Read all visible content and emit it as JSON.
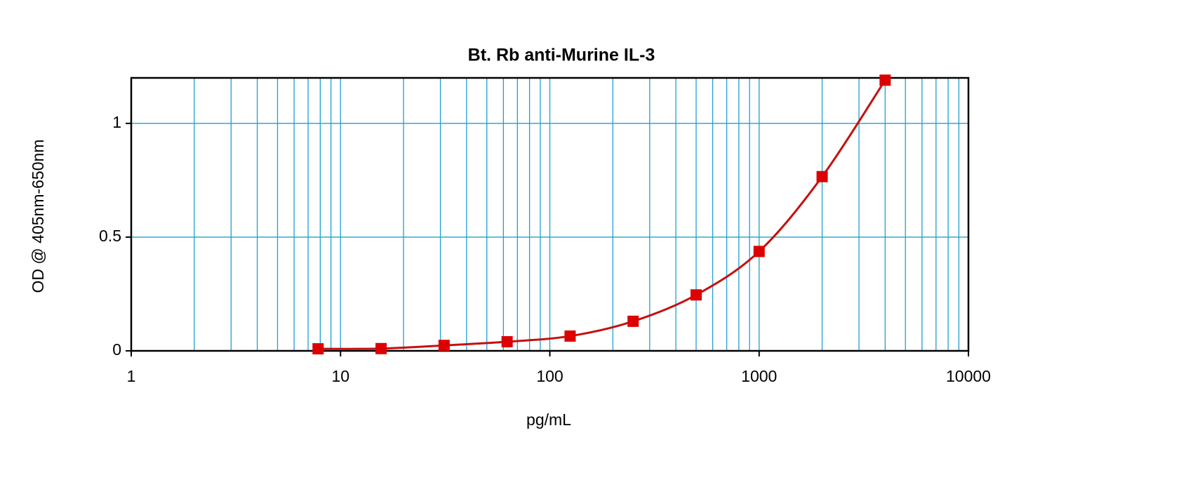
{
  "chart_data": {
    "type": "line",
    "title": "Bt. Rb anti-Murine IL-3",
    "x_label": "pg/mL",
    "y_label": "OD @ 405nm-650nm",
    "x": [
      7.8125,
      15.625,
      31.25,
      62.5,
      125,
      250,
      500,
      1000,
      2000,
      4000
    ],
    "series": [
      {
        "color": "#dd0000",
        "line_color": "#c41010",
        "values": [
          0.009,
          0.01,
          0.024,
          0.04,
          0.065,
          0.13,
          0.246,
          0.437,
          0.766,
          1.19
        ]
      }
    ],
    "xlim": [
      1,
      10000
    ],
    "xticks": [
      1,
      10,
      100,
      1000,
      10000
    ],
    "xscale": "log",
    "ylim": [
      0,
      1.2
    ],
    "yticks": [
      0,
      0.5,
      1
    ],
    "grid": true,
    "minor_grid": true
  }
}
